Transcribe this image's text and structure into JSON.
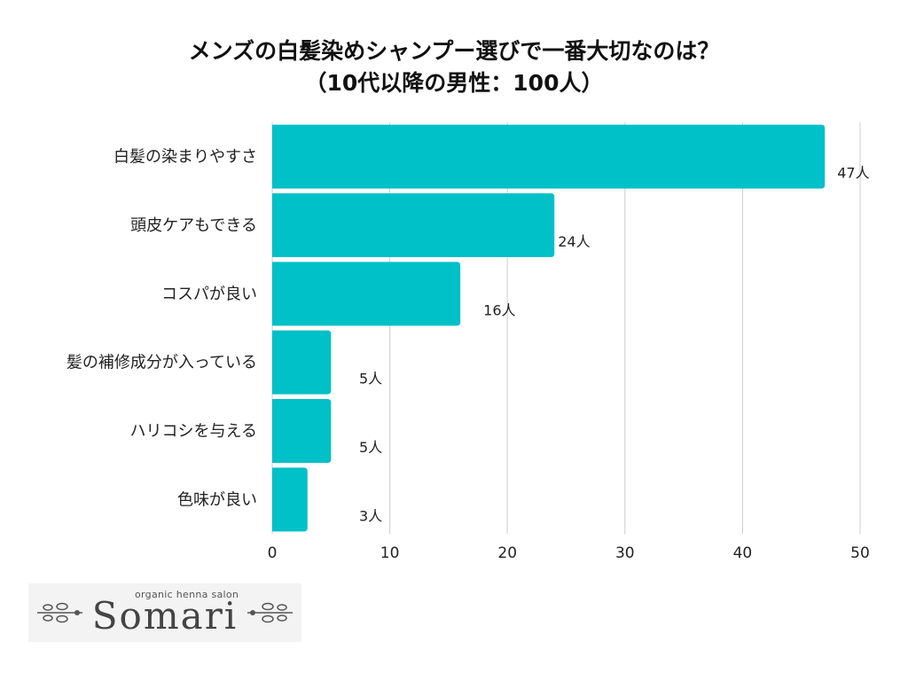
{
  "title_line1": "メンズの白髪染めシャンプー選びで一番大切なのは？",
  "title_line2": "（10代以降の男性：100人）",
  "colors": {
    "bar": "#00c0c8",
    "grid": "#cccccc",
    "text": "#222222"
  },
  "chart_data": {
    "type": "bar",
    "orientation": "horizontal",
    "title": "メンズの白髪染めシャンプー選びで一番大切なのは？（10代以降の男性：100人）",
    "categories": [
      "白髪の染まりやすさ",
      "頭皮ケアもできる",
      "コスパが良い",
      "髪の補修成分が入っている",
      "ハリコシを与える",
      "色味が良い"
    ],
    "values": [
      47,
      24,
      16,
      5,
      5,
      3
    ],
    "value_labels": [
      "47人",
      "24人",
      "16人",
      "5人",
      "5人",
      "3人"
    ],
    "xlim": [
      0,
      50
    ],
    "ticks": [
      0,
      10,
      20,
      30,
      40,
      50
    ],
    "tick_labels": [
      "0",
      "10",
      "20",
      "30",
      "40",
      "50"
    ],
    "grid": true,
    "legend": "none"
  },
  "logo": {
    "small_text": "organic henna salon",
    "name": "Somari",
    "icon": "leaf-branch-icon"
  }
}
